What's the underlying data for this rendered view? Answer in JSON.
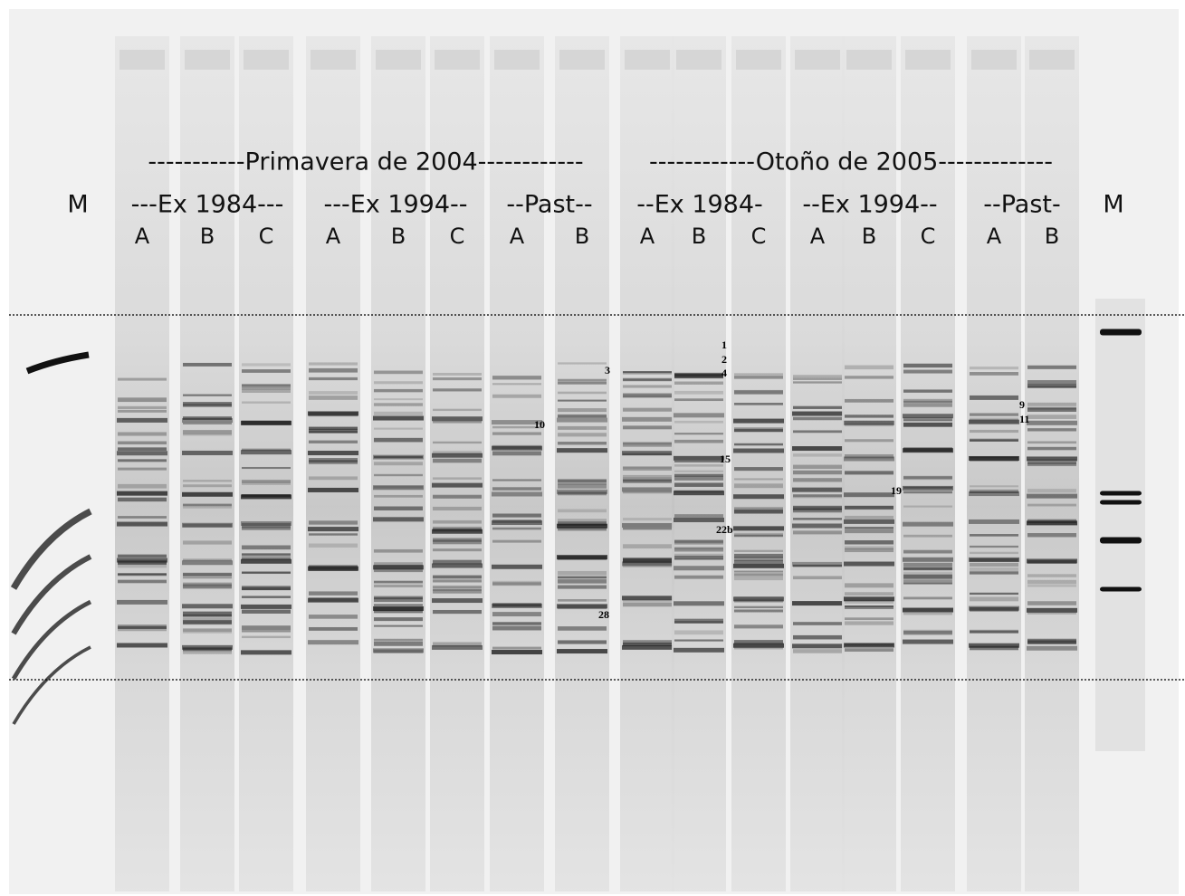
{
  "periods": [
    "-----------Primavera de 2004------------",
    "------------Otoño de 2005-------------"
  ],
  "markers": [
    "M",
    "M"
  ],
  "groups": [
    {
      "label": "---Ex 1984---",
      "lanes": [
        "A",
        "B",
        "C"
      ]
    },
    {
      "label": "---Ex 1994--",
      "lanes": [
        "A",
        "B",
        "C"
      ]
    },
    {
      "label": "--Past--",
      "lanes": [
        "A",
        "B"
      ]
    },
    {
      "label": "--Ex 1984-",
      "lanes": [
        "A",
        "B",
        "C"
      ]
    },
    {
      "label": "--Ex 1994--",
      "lanes": [
        "A",
        "B",
        "C"
      ]
    },
    {
      "label": "--Past-",
      "lanes": [
        "A",
        "B"
      ]
    }
  ],
  "band_labels": [
    "1",
    "2",
    "4",
    "3",
    "10",
    "15",
    "22b",
    "28",
    "19",
    "9",
    "11"
  ]
}
